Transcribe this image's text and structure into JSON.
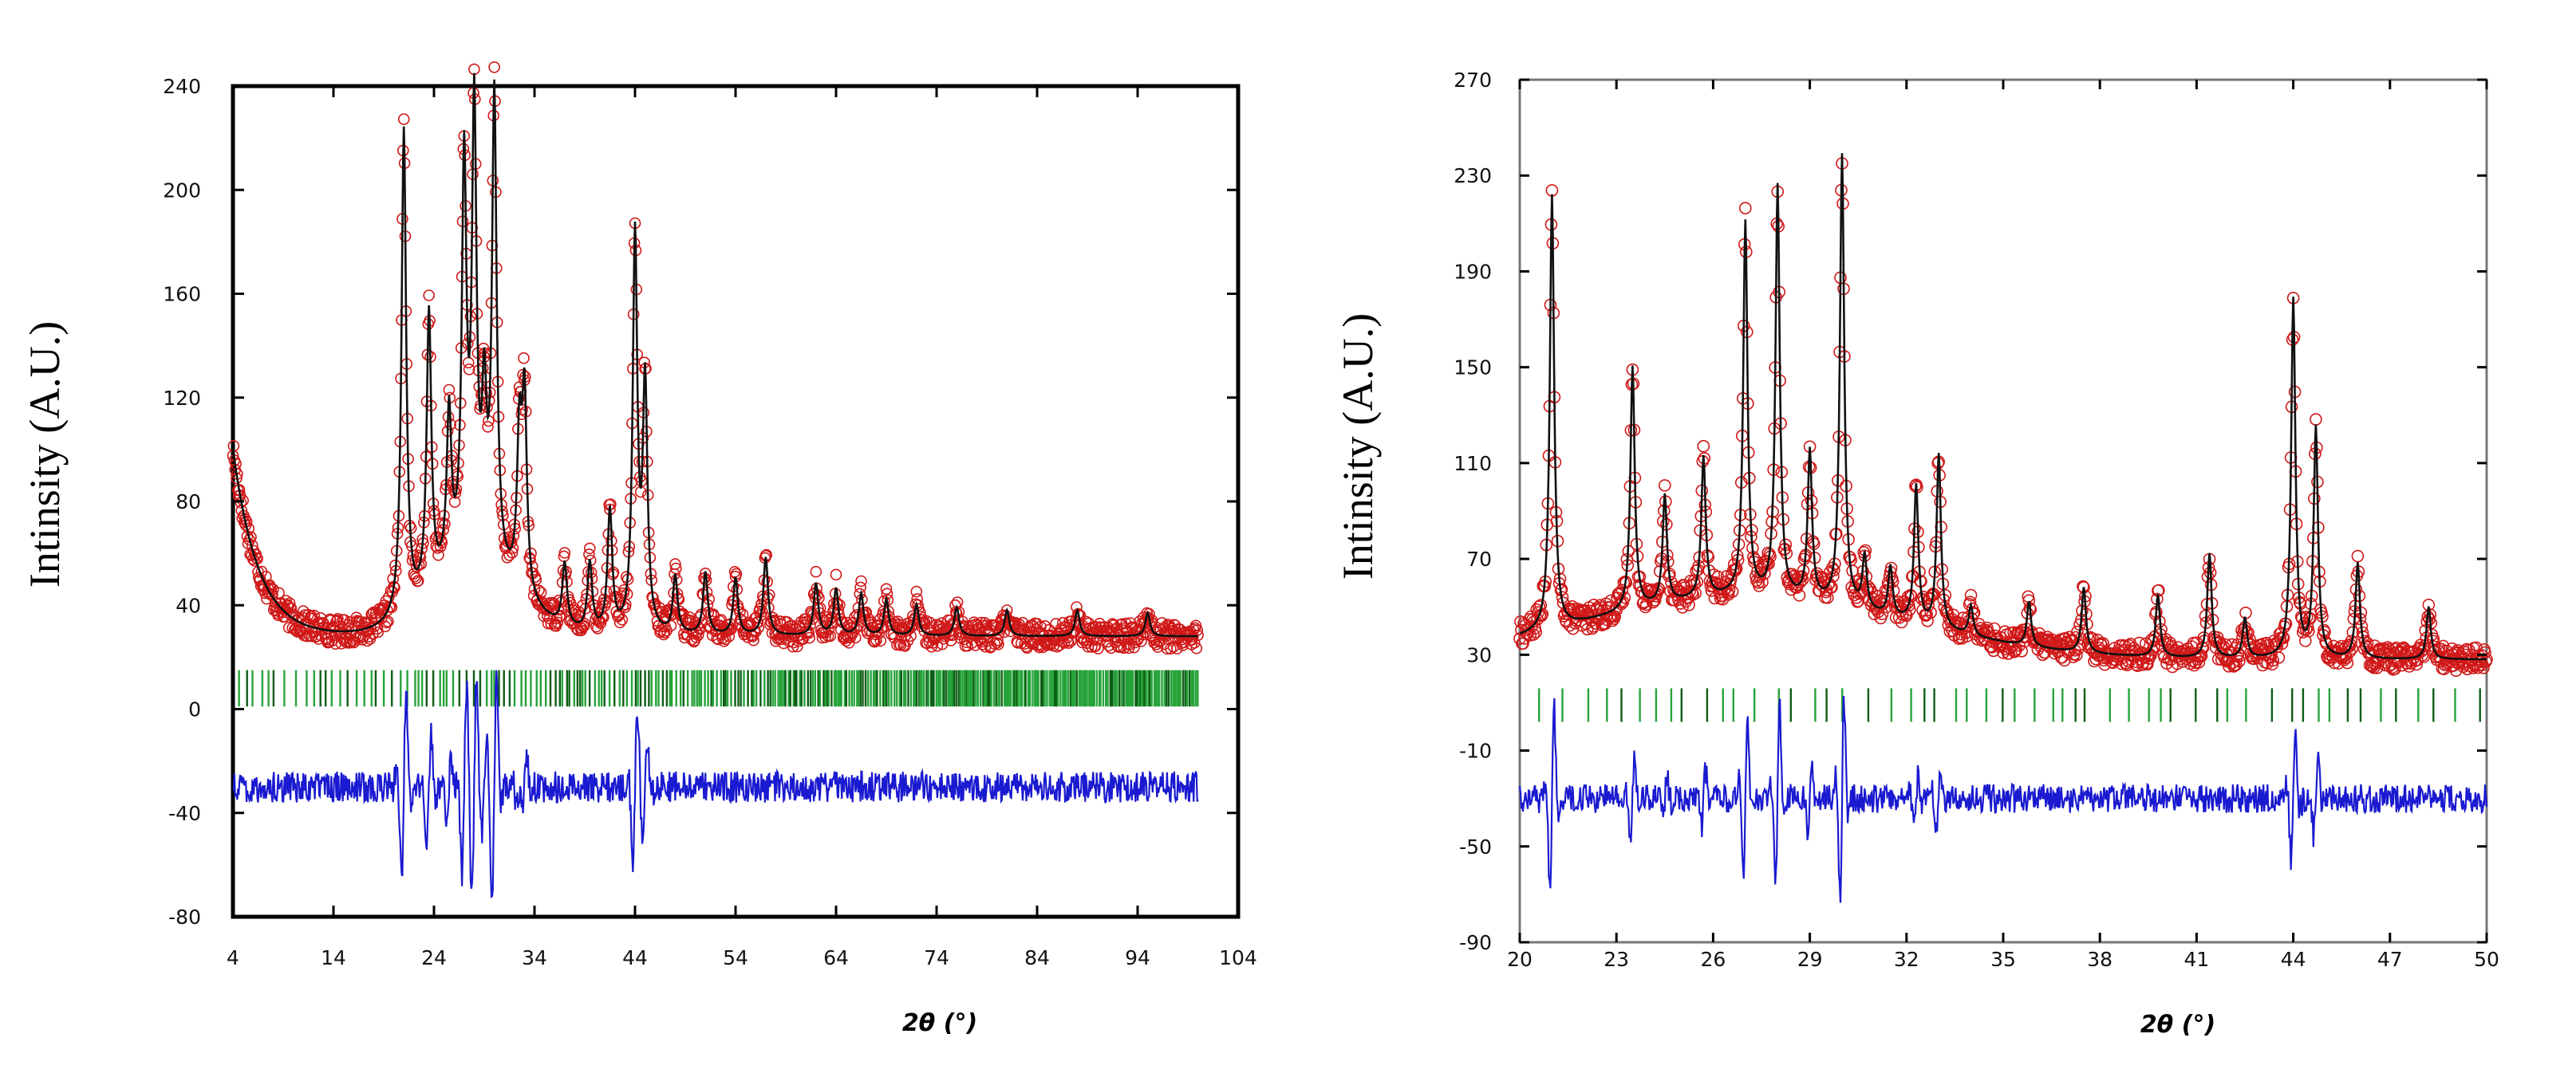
{
  "chart_data": [
    {
      "type": "line",
      "title": "",
      "ylabel": "Intinsity (A.U.)",
      "xlabel": "2θ (°)",
      "xlim": [
        4,
        104
      ],
      "ylim": [
        -80,
        240
      ],
      "xticks": [
        4,
        14,
        24,
        34,
        44,
        54,
        64,
        74,
        84,
        94,
        104
      ],
      "yticks": [
        -80,
        -40,
        0,
        40,
        80,
        120,
        160,
        200,
        240
      ],
      "background": {
        "baseline": 28,
        "start": 100,
        "decay": 2.5,
        "hump_center": 28,
        "hump_height": 26,
        "hump_width": 6
      },
      "peaks": [
        {
          "x": 21.0,
          "y": 222
        },
        {
          "x": 23.5,
          "y": 150
        },
        {
          "x": 25.5,
          "y": 110
        },
        {
          "x": 27.0,
          "y": 205
        },
        {
          "x": 28.0,
          "y": 225
        },
        {
          "x": 29.0,
          "y": 110
        },
        {
          "x": 30.0,
          "y": 232
        },
        {
          "x": 32.5,
          "y": 100
        },
        {
          "x": 33.0,
          "y": 115
        },
        {
          "x": 37.0,
          "y": 55
        },
        {
          "x": 39.5,
          "y": 55
        },
        {
          "x": 41.5,
          "y": 75
        },
        {
          "x": 44.0,
          "y": 180
        },
        {
          "x": 45.0,
          "y": 122
        },
        {
          "x": 48.0,
          "y": 50
        },
        {
          "x": 51.0,
          "y": 52
        },
        {
          "x": 54.0,
          "y": 50
        },
        {
          "x": 57.0,
          "y": 58
        },
        {
          "x": 62.0,
          "y": 48
        },
        {
          "x": 64.0,
          "y": 46
        },
        {
          "x": 66.5,
          "y": 44
        },
        {
          "x": 69.0,
          "y": 42
        },
        {
          "x": 72.0,
          "y": 40
        },
        {
          "x": 76.0,
          "y": 39
        },
        {
          "x": 81.0,
          "y": 38
        },
        {
          "x": 88.0,
          "y": 38
        },
        {
          "x": 95.0,
          "y": 37
        }
      ],
      "difference_baseline": -30,
      "tick_marks_y": 8,
      "series": [
        {
          "name": "Observed",
          "style": "open circles",
          "color": "#d01818"
        },
        {
          "name": "Calculated",
          "style": "line",
          "color": "#111111"
        },
        {
          "name": "Bragg positions",
          "style": "vertical ticks",
          "color": "#1f8f2a"
        },
        {
          "name": "Difference",
          "style": "line",
          "color": "#1a1ad0"
        }
      ]
    },
    {
      "type": "line",
      "title": "",
      "ylabel": "Intinsity (A.U.)",
      "xlabel": "2θ (°)",
      "xlim": [
        20,
        50
      ],
      "ylim": [
        -90,
        270
      ],
      "xticks": [
        20,
        23,
        26,
        29,
        32,
        35,
        38,
        41,
        44,
        47,
        50
      ],
      "xtick_labels": [
        "20",
        "23",
        "26",
        "29",
        "32",
        "35",
        "38",
        "41",
        "44",
        "47",
        "50"
      ],
      "yticks": [
        -90,
        -50,
        -10,
        30,
        70,
        110,
        150,
        190,
        230,
        270
      ],
      "background": {
        "baseline": 28,
        "start": 45,
        "decay": 0,
        "hump_center": 27,
        "hump_height": 26,
        "hump_width": 7
      },
      "peaks": [
        {
          "x": 21.0,
          "y": 222
        },
        {
          "x": 23.5,
          "y": 150
        },
        {
          "x": 24.5,
          "y": 96
        },
        {
          "x": 25.7,
          "y": 112
        },
        {
          "x": 27.0,
          "y": 210
        },
        {
          "x": 28.0,
          "y": 225
        },
        {
          "x": 29.0,
          "y": 114
        },
        {
          "x": 30.0,
          "y": 238
        },
        {
          "x": 30.7,
          "y": 70
        },
        {
          "x": 31.5,
          "y": 66
        },
        {
          "x": 32.3,
          "y": 100
        },
        {
          "x": 33.0,
          "y": 113
        },
        {
          "x": 34.0,
          "y": 50
        },
        {
          "x": 35.8,
          "y": 52
        },
        {
          "x": 37.5,
          "y": 58
        },
        {
          "x": 39.8,
          "y": 55
        },
        {
          "x": 41.4,
          "y": 72
        },
        {
          "x": 42.5,
          "y": 45
        },
        {
          "x": 44.0,
          "y": 178
        },
        {
          "x": 44.7,
          "y": 124
        },
        {
          "x": 46.0,
          "y": 68
        },
        {
          "x": 48.2,
          "y": 50
        }
      ],
      "difference_baseline": -30,
      "tick_marks_y": 9,
      "series": [
        {
          "name": "Observed",
          "style": "open circles",
          "color": "#d01818"
        },
        {
          "name": "Calculated",
          "style": "line",
          "color": "#111111"
        },
        {
          "name": "Bragg positions",
          "style": "vertical ticks",
          "color": "#1f8f2a"
        },
        {
          "name": "Difference",
          "style": "line",
          "color": "#1a1ad0"
        }
      ]
    }
  ]
}
